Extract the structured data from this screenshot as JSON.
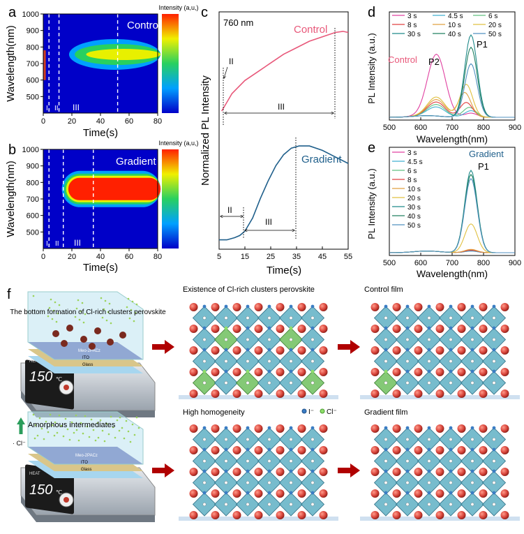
{
  "panels": {
    "a": {
      "letter": "a",
      "label": "Control",
      "ylabel": "Wavelength(nm)",
      "xlabel": "Time(s)",
      "cbar": "Intensity (a,u,)",
      "yticks": [
        "1000",
        "900",
        "800",
        "700",
        "600",
        "500"
      ],
      "xticks": [
        "0",
        "20",
        "40",
        "60",
        "80"
      ],
      "regions": [
        "I",
        "II",
        "III"
      ]
    },
    "b": {
      "letter": "b",
      "label": "Gradient",
      "ylabel": "Wavelength(nm)",
      "xlabel": "Time(s)",
      "cbar": "Intensity (a,u,)",
      "yticks": [
        "1000",
        "900",
        "800",
        "700",
        "600",
        "500"
      ],
      "xticks": [
        "0",
        "20",
        "40",
        "60",
        "80"
      ],
      "regions": [
        "I",
        "II",
        "III"
      ]
    },
    "c": {
      "letter": "c",
      "wavelength": "760 nm",
      "ylabel": "Normalized PL Intensity",
      "xlabel": "Time(s)",
      "xticks": [
        "5",
        "15",
        "25",
        "35",
        "45",
        "55"
      ],
      "control": "Control",
      "gradient": "Gradient",
      "ctrl_II": "II",
      "ctrl_III": "III",
      "grad_II": "II",
      "grad_III": "III"
    },
    "d": {
      "letter": "d",
      "ylabel": "PL Intensity (a.u.)",
      "xlabel": "Wavelength(nm)",
      "xticks": [
        "500",
        "600",
        "700",
        "800",
        "900"
      ],
      "legend": [
        "3 s",
        "4.5 s",
        "6 s",
        "8 s",
        "10 s",
        "20 s",
        "30 s",
        "40 s",
        "50 s"
      ],
      "control": "Control",
      "p1": "P1",
      "p2": "P2"
    },
    "e": {
      "letter": "e",
      "ylabel": "PL Intensity (a.u.)",
      "xlabel": "Wavelength(nm)",
      "xticks": [
        "500",
        "600",
        "700",
        "800",
        "900"
      ],
      "legend": [
        "3 s",
        "4.5 s",
        "6 s",
        "8 s",
        "10 s",
        "20 s",
        "30 s",
        "40 s",
        "50 s"
      ],
      "gradient": "Gradient",
      "p1": "P1"
    },
    "f": {
      "letter": "f",
      "top_device_text": "The bottom formation of Cl-rich clusters perovskite",
      "bottom_device_text": "Amorphous intermediates",
      "cl_label": "· Cl⁻",
      "layers": [
        "Meo-2PACz",
        "ITO",
        "Glass"
      ],
      "heat": "HEAT",
      "temp": "150",
      "unit": "℃",
      "top_middle": "Existence of Cl-rich clusters perovskite",
      "top_right": "Control film",
      "bottom_middle": "High homogeneity",
      "bottom_right": "Gradient film",
      "ion_i": "I⁻",
      "ion_cl": "Cl⁻"
    }
  },
  "colors": {
    "control": "#e8587a",
    "gradient": "#1f5f8b",
    "arrow": "#b00000",
    "octa_blue": "#4aa3b8",
    "octa_green": "#5aa84f",
    "red_atom": "#d8453b"
  },
  "chart_data": [
    {
      "type": "heatmap",
      "title": "Control",
      "xlabel": "Time(s)",
      "ylabel": "Wavelength(nm)",
      "xlim": [
        0,
        80
      ],
      "ylim": [
        400,
        1000
      ],
      "dashed_lines_x": [
        4,
        11,
        52
      ],
      "peak_center_nm": 755
    },
    {
      "type": "heatmap",
      "title": "Gradient",
      "xlabel": "Time(s)",
      "ylabel": "Wavelength(nm)",
      "xlim": [
        0,
        80
      ],
      "ylim": [
        400,
        1000
      ],
      "dashed_lines_x": [
        4,
        14,
        35
      ],
      "peak_center_nm": 760
    },
    {
      "type": "line",
      "xlabel": "Time(s)",
      "ylabel": "Normalized PL Intensity",
      "xlim": [
        5,
        55
      ],
      "series": [
        {
          "name": "Control",
          "x": [
            6,
            8,
            10,
            15,
            20,
            25,
            30,
            35,
            40,
            45,
            50,
            53,
            55
          ],
          "y": [
            0.62,
            0.66,
            0.7,
            0.76,
            0.8,
            0.84,
            0.88,
            0.91,
            0.94,
            0.96,
            0.98,
            0.985,
            0.98
          ]
        },
        {
          "name": "Gradient",
          "x": [
            5,
            8,
            11,
            13,
            15,
            18,
            21,
            24,
            27,
            30,
            33,
            36,
            40,
            45,
            50,
            55
          ],
          "y": [
            0.03,
            0.03,
            0.04,
            0.05,
            0.07,
            0.13,
            0.22,
            0.3,
            0.37,
            0.42,
            0.45,
            0.46,
            0.46,
            0.44,
            0.41,
            0.38
          ]
        }
      ]
    },
    {
      "type": "line",
      "xlabel": "Wavelength(nm)",
      "ylabel": "PL Intensity (a.u.)",
      "xlim": [
        500,
        900
      ],
      "series": [
        {
          "name": "3 s",
          "peak": 760,
          "amp": 0.05
        },
        {
          "name": "4.5 s",
          "peak": 760,
          "amp": 0.08
        },
        {
          "name": "6 s",
          "peak": 755,
          "amp": 0.12
        },
        {
          "name": "8 s",
          "peak": 745,
          "amp": 0.18
        },
        {
          "name": "10 s",
          "peak": 740,
          "amp": 0.3
        },
        {
          "name": "20 s",
          "peak": 745,
          "amp": 0.4
        },
        {
          "name": "30 s",
          "peak": 760,
          "amp": 1.0
        },
        {
          "name": "40 s",
          "peak": 760,
          "amp": 0.85
        },
        {
          "name": "50 s",
          "peak": 760,
          "amp": 0.65
        }
      ]
    },
    {
      "type": "line",
      "xlabel": "Wavelength(nm)",
      "ylabel": "PL Intensity (a.u.)",
      "xlim": [
        500,
        900
      ],
      "series": [
        {
          "name": "3 s",
          "peak": 760,
          "amp": 0.02
        },
        {
          "name": "4.5 s",
          "peak": 760,
          "amp": 0.02
        },
        {
          "name": "6 s",
          "peak": 760,
          "amp": 0.03
        },
        {
          "name": "8 s",
          "peak": 760,
          "amp": 0.03
        },
        {
          "name": "10 s",
          "peak": 760,
          "amp": 0.04
        },
        {
          "name": "20 s",
          "peak": 760,
          "amp": 0.35
        },
        {
          "name": "30 s",
          "peak": 760,
          "amp": 1.0
        },
        {
          "name": "40 s",
          "peak": 760,
          "amp": 0.95
        },
        {
          "name": "50 s",
          "peak": 760,
          "amp": 0.9
        }
      ]
    }
  ]
}
